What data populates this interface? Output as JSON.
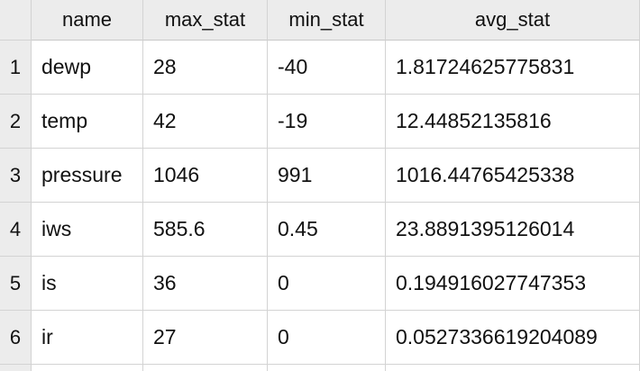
{
  "table": {
    "columns": [
      "name",
      "max_stat",
      "min_stat",
      "avg_stat"
    ],
    "rows": [
      {
        "num": "1",
        "cells": [
          "dewp",
          "28",
          "-40",
          "1.81724625775831"
        ]
      },
      {
        "num": "2",
        "cells": [
          "temp",
          "42",
          "-19",
          "12.44852135816"
        ]
      },
      {
        "num": "3",
        "cells": [
          "pressure",
          "1046",
          "991",
          "1016.44765425338"
        ]
      },
      {
        "num": "4",
        "cells": [
          "iws",
          "585.6",
          "0.45",
          "23.8891395126014"
        ]
      },
      {
        "num": "5",
        "cells": [
          "is",
          "36",
          "0",
          "0.194916027747353"
        ]
      },
      {
        "num": "6",
        "cells": [
          "ir",
          "27",
          "0",
          "0.0527336619204089"
        ]
      }
    ]
  }
}
